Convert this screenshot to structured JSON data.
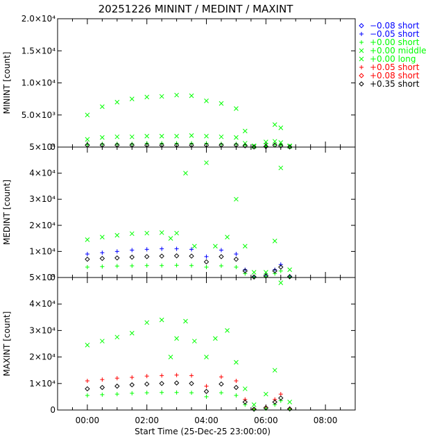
{
  "title": "20251226 MININT / MEDINT / MAXINT",
  "xlabel": "Start Time (25-Dec-25 23:00:00)",
  "x_ticks": [
    "00:00",
    "02:00",
    "04:00",
    "06:00",
    "08:00"
  ],
  "legend": [
    {
      "label": "−0.08 short",
      "color": "#0000ff",
      "marker": "diamond"
    },
    {
      "label": "−0.05 short",
      "color": "#0000ff",
      "marker": "plus"
    },
    {
      "label": "+0.00 short",
      "color": "#00ff00",
      "marker": "plus"
    },
    {
      "label": "+0.00 middle",
      "color": "#00ff00",
      "marker": "cross"
    },
    {
      "label": "+0.00 long",
      "color": "#00ff00",
      "marker": "cross"
    },
    {
      "label": "+0.05 short",
      "color": "#ff0000",
      "marker": "plus"
    },
    {
      "label": "+0.08 short",
      "color": "#ff0000",
      "marker": "diamond"
    },
    {
      "label": "+0.35 short",
      "color": "#000000",
      "marker": "diamond"
    }
  ],
  "chart_data": [
    {
      "type": "scatter",
      "panel": "top",
      "ylabel": "MININT [count]",
      "ylim": [
        0,
        20000
      ],
      "y_ticks": [
        {
          "value": 0,
          "label": "0"
        },
        {
          "value": 5000,
          "label": "5.0×10³"
        },
        {
          "value": 10000,
          "label": "1.0×10⁴"
        },
        {
          "value": 15000,
          "label": "1.5×10⁴"
        },
        {
          "value": 20000,
          "label": "2.0×10⁴"
        }
      ],
      "series": [
        {
          "name": "+0.00 long",
          "color": "#00ff00",
          "marker": "cross",
          "x": [
            0.0,
            0.5,
            1.0,
            1.5,
            2.0,
            2.5,
            3.0,
            3.5,
            4.0,
            4.5,
            5.0,
            5.3,
            5.6,
            6.0,
            6.3,
            6.5,
            6.8
          ],
          "y": [
            5000,
            6300,
            7000,
            7500,
            7800,
            7900,
            8100,
            8000,
            7200,
            6800,
            6000,
            2500,
            200,
            800,
            3500,
            3000,
            200
          ]
        },
        {
          "name": "+0.00 middle",
          "color": "#00ff00",
          "marker": "cross",
          "x": [
            0.0,
            0.5,
            1.0,
            1.5,
            2.0,
            2.5,
            3.0,
            3.5,
            4.0,
            4.5,
            5.0,
            5.3,
            5.6,
            6.0,
            6.3,
            6.5,
            6.8
          ],
          "y": [
            1200,
            1500,
            1600,
            1600,
            1700,
            1700,
            1700,
            1800,
            1700,
            1600,
            1500,
            600,
            100,
            300,
            900,
            700,
            100
          ]
        },
        {
          "name": "+0.00 short",
          "color": "#00ff00",
          "marker": "plus",
          "x": [
            0.0,
            0.5,
            1.0,
            1.5,
            2.0,
            2.5,
            3.0,
            3.5,
            4.0,
            4.5,
            5.0,
            5.3,
            5.6,
            6.0,
            6.3,
            6.5,
            6.8
          ],
          "y": [
            400,
            500,
            500,
            500,
            600,
            600,
            600,
            600,
            600,
            500,
            500,
            300,
            50,
            100,
            400,
            300,
            50
          ]
        },
        {
          "name": "+0.35 short",
          "color": "#000000",
          "marker": "diamond",
          "x": [
            0.0,
            0.5,
            1.0,
            1.5,
            2.0,
            2.5,
            3.0,
            3.5,
            4.0,
            4.5,
            5.0,
            5.3,
            5.6,
            6.0,
            6.3,
            6.5,
            6.8
          ],
          "y": [
            300,
            300,
            300,
            300,
            300,
            300,
            300,
            300,
            300,
            300,
            300,
            200,
            20,
            80,
            300,
            200,
            20
          ]
        }
      ]
    },
    {
      "type": "scatter",
      "panel": "middle",
      "ylabel": "MEDINT [count]",
      "ylim": [
        0,
        50000
      ],
      "y_ticks": [
        {
          "value": 0,
          "label": "0"
        },
        {
          "value": 10000,
          "label": "1×10⁴"
        },
        {
          "value": 20000,
          "label": "2×10⁴"
        },
        {
          "value": 30000,
          "label": "3×10⁴"
        },
        {
          "value": 40000,
          "label": "4×10⁴"
        },
        {
          "value": 50000,
          "label": "5×10⁴"
        }
      ],
      "series": [
        {
          "name": "+0.00 long",
          "color": "#00ff00",
          "marker": "cross",
          "x": [
            0.0,
            0.5,
            1.0,
            1.5,
            2.0,
            2.5,
            2.8,
            3.0,
            3.3,
            3.6,
            4.0,
            4.3,
            4.7,
            5.0,
            5.3,
            5.6,
            6.0,
            6.3,
            6.5,
            6.8
          ],
          "y": [
            14500,
            15500,
            16200,
            16800,
            17000,
            17200,
            15000,
            17000,
            40000,
            12000,
            44000,
            12000,
            15500,
            30000,
            12000,
            2000,
            2000,
            14000,
            42000,
            3000
          ]
        },
        {
          "name": "−0.05 short",
          "color": "#0000ff",
          "marker": "plus",
          "x": [
            0.0,
            0.5,
            1.0,
            1.5,
            2.0,
            2.5,
            3.0,
            3.5,
            4.0,
            4.5,
            5.0,
            5.3,
            5.6,
            6.0,
            6.3,
            6.5,
            6.8
          ],
          "y": [
            9000,
            9500,
            10000,
            10500,
            10800,
            11000,
            11000,
            10800,
            8000,
            10500,
            9000,
            3000,
            300,
            800,
            3000,
            5000,
            500
          ]
        },
        {
          "name": "+0.00 short",
          "color": "#00ff00",
          "marker": "plus",
          "x": [
            0.0,
            0.5,
            1.0,
            1.5,
            2.0,
            2.5,
            3.0,
            3.5,
            4.0,
            4.5,
            5.0,
            5.3,
            5.6,
            6.0,
            6.3,
            6.5,
            6.8
          ],
          "y": [
            4000,
            4200,
            4400,
            4500,
            4600,
            4600,
            4700,
            4600,
            4000,
            4500,
            4000,
            1500,
            100,
            300,
            1500,
            2500,
            200
          ]
        },
        {
          "name": "+0.35 short",
          "color": "#000000",
          "marker": "diamond",
          "x": [
            0.0,
            0.5,
            1.0,
            1.5,
            2.0,
            2.5,
            3.0,
            3.5,
            4.0,
            4.5,
            5.0,
            5.3,
            5.6,
            6.0,
            6.3,
            6.5,
            6.8
          ],
          "y": [
            7000,
            7300,
            7500,
            7800,
            8000,
            8200,
            8300,
            8200,
            6000,
            8000,
            7000,
            2500,
            200,
            600,
            2500,
            4000,
            300
          ]
        }
      ]
    },
    {
      "type": "scatter",
      "panel": "bottom",
      "ylabel": "MAXINT [count]",
      "ylim": [
        0,
        50000
      ],
      "y_ticks": [
        {
          "value": 0,
          "label": "0"
        },
        {
          "value": 10000,
          "label": "1×10⁴"
        },
        {
          "value": 20000,
          "label": "2×10⁴"
        },
        {
          "value": 30000,
          "label": "3×10⁴"
        },
        {
          "value": 40000,
          "label": "4×10⁴"
        },
        {
          "value": 50000,
          "label": "5×10⁴"
        }
      ],
      "series": [
        {
          "name": "+0.00 long",
          "color": "#00ff00",
          "marker": "cross",
          "x": [
            0.0,
            0.5,
            1.0,
            1.5,
            2.0,
            2.5,
            2.8,
            3.0,
            3.3,
            3.6,
            4.0,
            4.3,
            4.7,
            5.0,
            5.3,
            5.6,
            6.0,
            6.3,
            6.5,
            6.8
          ],
          "y": [
            24500,
            26000,
            27500,
            29000,
            33000,
            34000,
            20000,
            27000,
            33500,
            26000,
            20000,
            27000,
            30000,
            18000,
            8000,
            2000,
            6000,
            15000,
            48000,
            3000
          ]
        },
        {
          "name": "+0.05 short",
          "color": "#ff0000",
          "marker": "plus",
          "x": [
            0.0,
            0.5,
            1.0,
            1.5,
            2.0,
            2.5,
            3.0,
            3.5,
            4.0,
            4.5,
            5.0,
            5.3,
            5.6,
            6.0,
            6.3,
            6.5,
            6.8
          ],
          "y": [
            11000,
            11500,
            12000,
            12300,
            12800,
            13000,
            13200,
            13000,
            9000,
            12500,
            11000,
            4000,
            400,
            1000,
            4000,
            6000,
            600
          ]
        },
        {
          "name": "+0.00 short",
          "color": "#00ff00",
          "marker": "plus",
          "x": [
            0.0,
            0.5,
            1.0,
            1.5,
            2.0,
            2.5,
            3.0,
            3.5,
            4.0,
            4.5,
            5.0,
            5.3,
            5.6,
            6.0,
            6.3,
            6.5,
            6.8
          ],
          "y": [
            5500,
            5800,
            6000,
            6300,
            6500,
            6600,
            6600,
            6500,
            5000,
            6500,
            5500,
            2000,
            200,
            500,
            2000,
            3500,
            300
          ]
        },
        {
          "name": "+0.35 short",
          "color": "#000000",
          "marker": "diamond",
          "x": [
            0.0,
            0.5,
            1.0,
            1.5,
            2.0,
            2.5,
            3.0,
            3.5,
            4.0,
            4.5,
            5.0,
            5.3,
            5.6,
            6.0,
            6.3,
            6.5,
            6.8
          ],
          "y": [
            8000,
            8500,
            9000,
            9500,
            9800,
            10000,
            10200,
            10000,
            7000,
            9800,
            8500,
            3000,
            300,
            800,
            3000,
            4500,
            400
          ]
        }
      ]
    }
  ],
  "xlim": [
    -1.0,
    9.0
  ]
}
